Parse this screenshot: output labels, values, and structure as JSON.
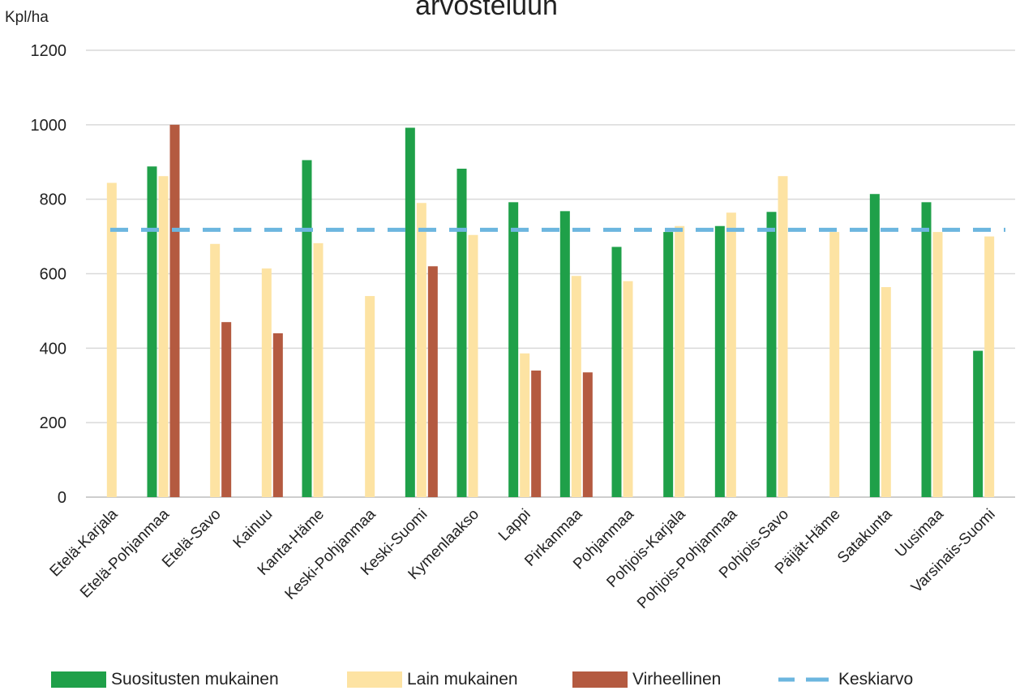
{
  "chart_data": {
    "type": "bar",
    "title": "arvosteluun",
    "ylabel": "Kpl/ha",
    "ylim": [
      0,
      1200
    ],
    "yticks": [
      0,
      200,
      400,
      600,
      800,
      1000,
      1200
    ],
    "grid": true,
    "legend_position": "bottom",
    "categories": [
      "Etelä-Karjala",
      "Etelä-Pohjanmaa",
      "Etelä-Savo",
      "Kainuu",
      "Kanta-Häme",
      "Keski-Pohjanmaa",
      "Keski-Suomi",
      "Kymenlaakso",
      "Lappi",
      "Pirkanmaa",
      "Pohjanmaa",
      "Pohjois-Karjala",
      "Pohjois-Pohjanmaa",
      "Pohjois-Savo",
      "Päijät-Häme",
      "Satakunta",
      "Uusimaa",
      "Varsinais-Suomi"
    ],
    "series": [
      {
        "name": "Suositusten mukainen",
        "color": "#1fa049",
        "values": [
          null,
          888,
          null,
          null,
          905,
          null,
          992,
          882,
          792,
          768,
          672,
          712,
          728,
          766,
          null,
          814,
          792,
          393
        ]
      },
      {
        "name": "Lain mukainen",
        "color": "#fde3a3",
        "values": [
          844,
          862,
          680,
          614,
          682,
          540,
          790,
          704,
          386,
          594,
          580,
          728,
          764,
          862,
          712,
          564,
          712,
          700
        ]
      },
      {
        "name": "Virheellinen",
        "color": "#b45a40",
        "values": [
          null,
          1000,
          470,
          440,
          null,
          null,
          620,
          null,
          340,
          335,
          null,
          null,
          null,
          null,
          null,
          null,
          null,
          null
        ]
      }
    ],
    "reference_line": {
      "name": "Keskiarvo",
      "value": 718,
      "color": "#6cb6df",
      "style": "dashed"
    }
  }
}
